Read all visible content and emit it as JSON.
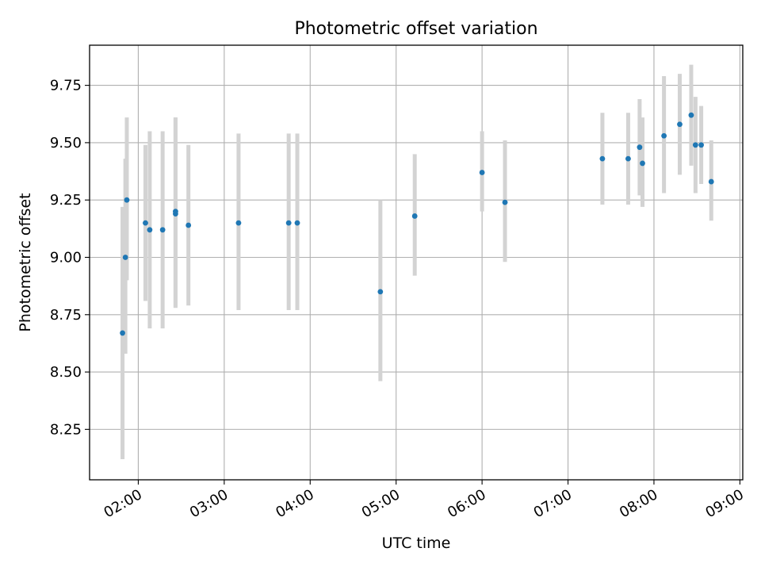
{
  "chart_data": {
    "type": "scatter",
    "title": "Photometric offset variation",
    "xlabel": "UTC time",
    "ylabel": "Photometric offset",
    "xlim": [
      "01:26",
      "09:02"
    ],
    "ylim": [
      8.03,
      9.925
    ],
    "grid": true,
    "x_ticks": [
      "02:00",
      "03:00",
      "04:00",
      "05:00",
      "06:00",
      "07:00",
      "08:00",
      "09:00"
    ],
    "y_ticks": [
      "8.25",
      "8.50",
      "8.75",
      "9.00",
      "9.25",
      "9.50",
      "9.75"
    ],
    "series": [
      {
        "marker_color": "#1f77b4",
        "errorbar_color": "#d3d3d3",
        "points": [
          {
            "x": "01:49",
            "y": 8.67,
            "yerr_low": 8.12,
            "yerr_high": 9.22
          },
          {
            "x": "01:51",
            "y": 9.0,
            "yerr_low": 8.58,
            "yerr_high": 9.43
          },
          {
            "x": "01:52",
            "y": 9.25,
            "yerr_low": 8.9,
            "yerr_high": 9.61
          },
          {
            "x": "02:05",
            "y": 9.15,
            "yerr_low": 8.81,
            "yerr_high": 9.49
          },
          {
            "x": "02:08",
            "y": 9.12,
            "yerr_low": 8.69,
            "yerr_high": 9.55
          },
          {
            "x": "02:17",
            "y": 9.12,
            "yerr_low": 8.69,
            "yerr_high": 9.55
          },
          {
            "x": "02:26",
            "y": 9.19,
            "yerr_low": 8.78,
            "yerr_high": 9.61
          },
          {
            "x": "02:26",
            "y": 9.2,
            "yerr_low": 8.78,
            "yerr_high": 9.61
          },
          {
            "x": "02:35",
            "y": 9.14,
            "yerr_low": 8.79,
            "yerr_high": 9.49
          },
          {
            "x": "03:10",
            "y": 9.15,
            "yerr_low": 8.77,
            "yerr_high": 9.54
          },
          {
            "x": "03:45",
            "y": 9.15,
            "yerr_low": 8.77,
            "yerr_high": 9.54
          },
          {
            "x": "03:51",
            "y": 9.15,
            "yerr_low": 8.77,
            "yerr_high": 9.54
          },
          {
            "x": "04:49",
            "y": 8.85,
            "yerr_low": 8.46,
            "yerr_high": 9.25
          },
          {
            "x": "05:13",
            "y": 9.18,
            "yerr_low": 8.92,
            "yerr_high": 9.45
          },
          {
            "x": "06:00",
            "y": 9.37,
            "yerr_low": 9.2,
            "yerr_high": 9.55
          },
          {
            "x": "06:16",
            "y": 9.24,
            "yerr_low": 8.98,
            "yerr_high": 9.51
          },
          {
            "x": "07:24",
            "y": 9.43,
            "yerr_low": 9.23,
            "yerr_high": 9.63
          },
          {
            "x": "07:42",
            "y": 9.43,
            "yerr_low": 9.23,
            "yerr_high": 9.63
          },
          {
            "x": "07:50",
            "y": 9.48,
            "yerr_low": 9.27,
            "yerr_high": 9.69
          },
          {
            "x": "07:52",
            "y": 9.41,
            "yerr_low": 9.22,
            "yerr_high": 9.61
          },
          {
            "x": "08:07",
            "y": 9.53,
            "yerr_low": 9.28,
            "yerr_high": 9.79
          },
          {
            "x": "08:18",
            "y": 9.58,
            "yerr_low": 9.36,
            "yerr_high": 9.8
          },
          {
            "x": "08:26",
            "y": 9.62,
            "yerr_low": 9.4,
            "yerr_high": 9.84
          },
          {
            "x": "08:29",
            "y": 9.49,
            "yerr_low": 9.28,
            "yerr_high": 9.7
          },
          {
            "x": "08:33",
            "y": 9.49,
            "yerr_low": 9.32,
            "yerr_high": 9.66
          },
          {
            "x": "08:40",
            "y": 9.33,
            "yerr_low": 9.16,
            "yerr_high": 9.51
          }
        ]
      }
    ]
  }
}
